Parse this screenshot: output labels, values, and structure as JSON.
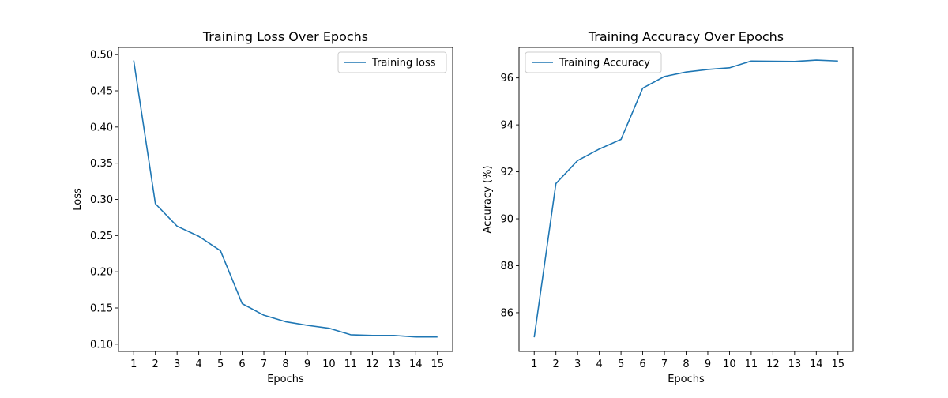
{
  "chart_data": [
    {
      "type": "line",
      "title": "Training Loss Over Epochs",
      "xlabel": "Epochs",
      "ylabel": "Loss",
      "x": [
        1,
        2,
        3,
        4,
        5,
        6,
        7,
        8,
        9,
        10,
        11,
        12,
        13,
        14,
        15
      ],
      "xlim": [
        0.3,
        15.7
      ],
      "ylim": [
        0.09,
        0.51
      ],
      "yticks": [
        0.1,
        0.15,
        0.2,
        0.25,
        0.3,
        0.35,
        0.4,
        0.45,
        0.5
      ],
      "ytick_labels": [
        "0.10",
        "0.15",
        "0.20",
        "0.25",
        "0.30",
        "0.35",
        "0.40",
        "0.45",
        "0.50"
      ],
      "legend_position": "upper-right",
      "series": [
        {
          "name": "Training loss",
          "color": "#1f77b4",
          "values": [
            0.492,
            0.294,
            0.263,
            0.249,
            0.229,
            0.156,
            0.14,
            0.131,
            0.126,
            0.122,
            0.113,
            0.112,
            0.112,
            0.11,
            0.11
          ]
        }
      ]
    },
    {
      "type": "line",
      "title": "Training Accuracy Over Epochs",
      "xlabel": "Epochs",
      "ylabel": "Accuracy (%)",
      "x": [
        1,
        2,
        3,
        4,
        5,
        6,
        7,
        8,
        9,
        10,
        11,
        12,
        13,
        14,
        15
      ],
      "xlim": [
        0.3,
        15.7
      ],
      "ylim": [
        84.35,
        97.3
      ],
      "yticks": [
        86,
        88,
        90,
        92,
        94,
        96
      ],
      "ytick_labels": [
        "86",
        "88",
        "90",
        "92",
        "94",
        "96"
      ],
      "legend_position": "upper-left",
      "series": [
        {
          "name": "Training Accuracy",
          "color": "#1f77b4",
          "values": [
            84.95,
            91.5,
            92.48,
            92.97,
            93.38,
            95.56,
            96.06,
            96.25,
            96.36,
            96.43,
            96.72,
            96.71,
            96.7,
            96.76,
            96.72
          ]
        }
      ]
    }
  ]
}
